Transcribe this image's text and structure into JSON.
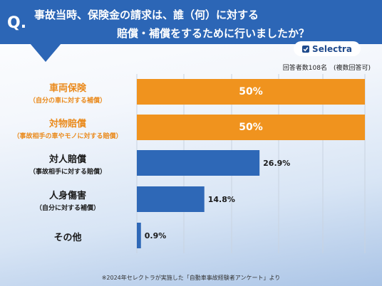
{
  "header": {
    "q_mark": "Q.",
    "title_line1": "事故当時、保険金の請求は、誰（何）に対する",
    "title_line2": "賠償・補償をするために行いましたか？",
    "brand": "Selectra"
  },
  "respondents": "回答者数108名　(複数回答可)",
  "note": "※2024年セレクトラが実施した「自動車事故経験者アンケート」より",
  "colors": {
    "header": "#2c66b6",
    "highlight_bar": "#f0931e",
    "normal_bar": "#2e68b7",
    "highlight_text": "#ea8a1c"
  },
  "rows": [
    {
      "label": "車両保険",
      "sublabel": "（自分の車に対する補償）",
      "value_text": "50%",
      "highlight": true
    },
    {
      "label": "対物賠償",
      "sublabel": "（事故相手の車やモノに対する賠償）",
      "value_text": "50%",
      "highlight": true
    },
    {
      "label": "対人賠償",
      "sublabel": "（事故相手に対する賠償）",
      "value_text": "26.9%",
      "highlight": false
    },
    {
      "label": "人身傷害",
      "sublabel": "（自分に対する補償）",
      "value_text": "14.8%",
      "highlight": false
    },
    {
      "label": "その他",
      "sublabel": "",
      "value_text": "0.9%",
      "highlight": false
    }
  ],
  "chart_data": {
    "type": "bar",
    "orientation": "horizontal",
    "categories": [
      "車両保険",
      "対物賠償",
      "対人賠償",
      "人身傷害",
      "その他"
    ],
    "values": [
      50,
      50,
      26.9,
      14.8,
      0.9
    ],
    "unit": "%",
    "grid": true
  }
}
